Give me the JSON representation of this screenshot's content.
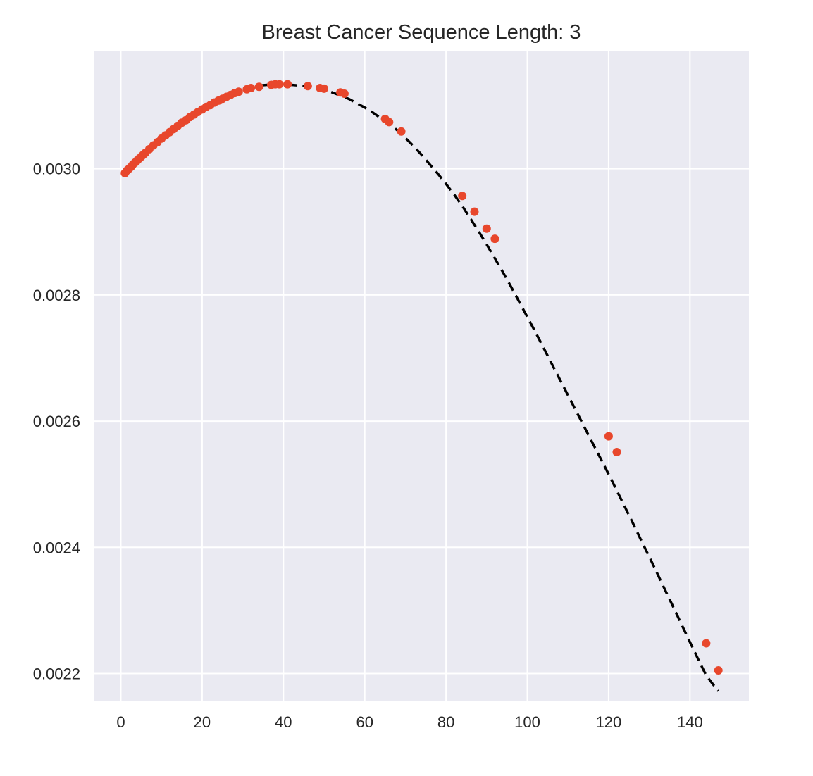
{
  "chart_data": {
    "type": "scatter",
    "title": "Breast Cancer Sequence Length: 3",
    "xlabel": "",
    "ylabel": "",
    "xlim": [
      -6.5,
      154.5
    ],
    "ylim": [
      0.002157,
      0.003186
    ],
    "x_ticks": [
      0,
      20,
      40,
      60,
      80,
      100,
      120,
      140
    ],
    "y_ticks": [
      0.0022,
      0.0024,
      0.0026,
      0.0028,
      0.003
    ],
    "x_tick_labels": [
      "0",
      "20",
      "40",
      "60",
      "80",
      "100",
      "120",
      "140"
    ],
    "y_tick_labels": [
      "0.0022",
      "0.0024",
      "0.0026",
      "0.0028",
      "0.0030"
    ],
    "grid": true,
    "colors": {
      "background": "#eaeaf2",
      "points": "#e8472c",
      "line": "#000000",
      "grid": "#ffffff"
    },
    "series": [
      {
        "type": "line",
        "style": "dashed",
        "x": [
          1,
          2,
          3,
          4,
          5,
          6,
          8,
          10,
          12,
          14,
          16,
          18,
          20,
          22,
          24,
          26,
          28,
          30,
          32,
          34,
          36,
          38,
          40,
          42,
          44,
          46,
          48,
          50,
          52,
          54,
          56,
          58,
          60,
          62,
          64,
          66,
          68,
          70,
          72,
          74,
          76,
          78,
          80,
          82,
          84,
          86,
          88,
          90,
          92,
          94,
          96,
          98,
          100,
          102,
          104,
          106,
          108,
          110,
          112,
          114,
          116,
          118,
          120,
          122,
          124,
          126,
          128,
          130,
          132,
          134,
          136,
          138,
          140,
          142,
          144,
          146,
          147
        ],
        "y": [
          0.002992,
          0.003,
          0.003008,
          0.003016,
          0.003022,
          0.003028,
          0.003039,
          0.003049,
          0.003059,
          0.003069,
          0.003079,
          0.003088,
          0.003096,
          0.003103,
          0.00311,
          0.003116,
          0.003122,
          0.003126,
          0.00313,
          0.003132,
          0.003133,
          0.003134,
          0.003134,
          0.003133,
          0.003132,
          0.003131,
          0.003128,
          0.003125,
          0.003121,
          0.003116,
          0.003111,
          0.003104,
          0.003097,
          0.003089,
          0.00308,
          0.003071,
          0.003061,
          0.003049,
          0.003036,
          0.003022,
          0.003007,
          0.002992,
          0.002976,
          0.002959,
          0.002941,
          0.002921,
          0.002901,
          0.00288,
          0.002858,
          0.002836,
          0.002813,
          0.002789,
          0.002765,
          0.002741,
          0.002716,
          0.002691,
          0.002666,
          0.002641,
          0.002616,
          0.002591,
          0.002566,
          0.002541,
          0.002516,
          0.00249,
          0.002464,
          0.002438,
          0.002411,
          0.002385,
          0.002358,
          0.002331,
          0.002304,
          0.002277,
          0.00225,
          0.002223,
          0.002197,
          0.00218,
          0.002172
        ]
      },
      {
        "type": "scatter",
        "x": [
          1,
          1.5,
          2,
          2.5,
          3,
          3.5,
          4,
          4.5,
          5,
          5.5,
          6,
          7,
          8,
          9,
          10,
          11,
          12,
          13,
          14,
          15,
          16,
          17,
          18,
          19,
          20,
          21,
          22,
          23,
          24,
          25,
          26,
          27,
          28,
          29,
          31,
          32,
          34,
          37,
          38,
          39,
          41,
          46,
          49,
          50,
          54,
          55,
          65,
          66,
          69,
          84,
          87,
          90,
          92,
          120,
          122,
          144,
          147
        ],
        "y": [
          0.002993,
          0.002997,
          0.003,
          0.003003,
          0.003007,
          0.00301,
          0.003013,
          0.003016,
          0.003019,
          0.003022,
          0.003025,
          0.003031,
          0.003037,
          0.003042,
          0.003048,
          0.003053,
          0.003058,
          0.003063,
          0.003068,
          0.003073,
          0.003077,
          0.003082,
          0.003086,
          0.00309,
          0.003094,
          0.003098,
          0.003101,
          0.003105,
          0.003108,
          0.003111,
          0.003114,
          0.003117,
          0.00312,
          0.003122,
          0.003126,
          0.003128,
          0.00313,
          0.003133,
          0.003134,
          0.003134,
          0.003134,
          0.003131,
          0.003128,
          0.003127,
          0.003121,
          0.003119,
          0.003079,
          0.003074,
          0.003059,
          0.002957,
          0.002932,
          0.002905,
          0.002889,
          0.002576,
          0.002551,
          0.002248,
          0.002205
        ]
      }
    ]
  }
}
